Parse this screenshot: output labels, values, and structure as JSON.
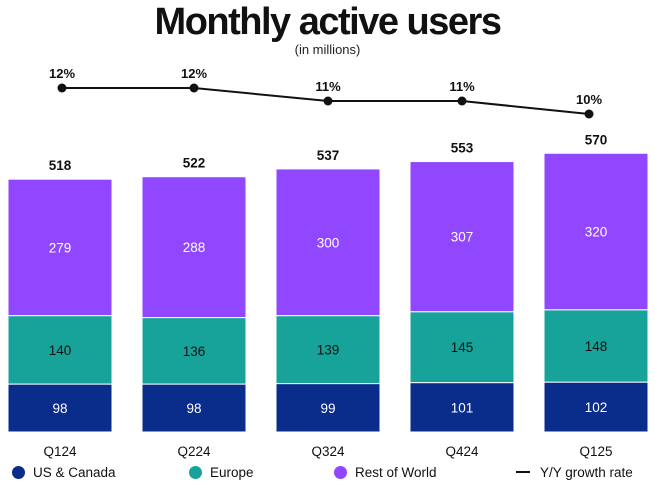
{
  "chart_data": {
    "type": "bar",
    "stacked": true,
    "title": "Monthly active users",
    "subtitle": "(in millions)",
    "categories": [
      "Q124",
      "Q224",
      "Q324",
      "Q424",
      "Q125"
    ],
    "series": [
      {
        "name": "US & Canada",
        "color": "#0a2d8c",
        "values": [
          98,
          98,
          99,
          101,
          102
        ]
      },
      {
        "name": "Europe",
        "color": "#17a39a",
        "values": [
          140,
          136,
          139,
          145,
          148
        ]
      },
      {
        "name": "Rest of World",
        "color": "#9146ff",
        "values": [
          279,
          288,
          300,
          307,
          320
        ]
      }
    ],
    "totals": [
      518,
      522,
      537,
      553,
      570
    ],
    "line_series": {
      "name": "Y/Y growth rate",
      "color": "#111111",
      "values": [
        12,
        12,
        11,
        11,
        10
      ],
      "labels": [
        "12%",
        "12%",
        "11%",
        "11%",
        "10%"
      ]
    },
    "legend_position": "bottom"
  }
}
